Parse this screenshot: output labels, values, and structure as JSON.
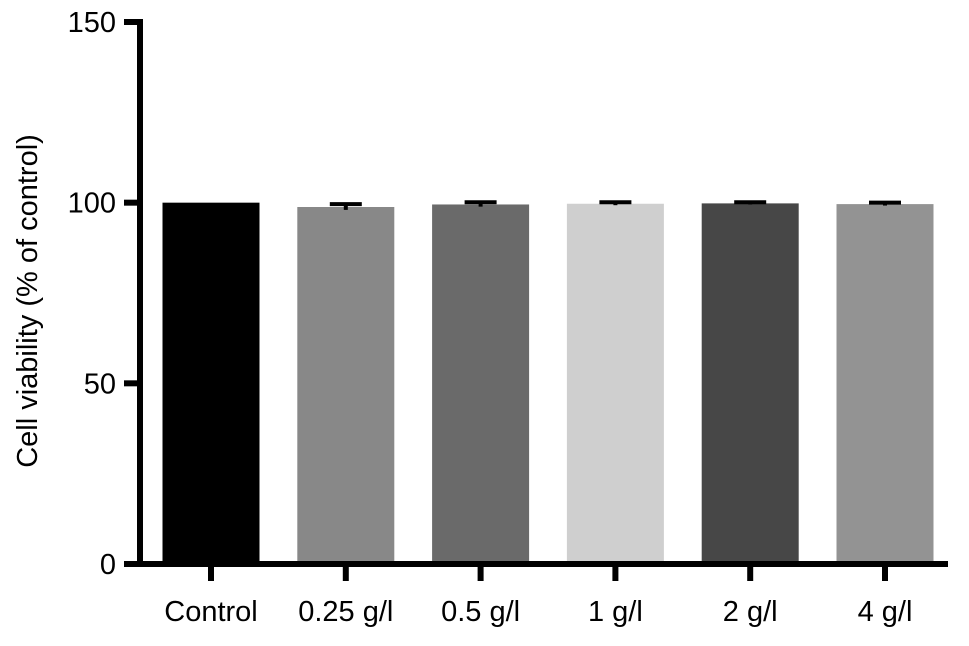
{
  "chart_data": {
    "type": "bar",
    "title": "",
    "xlabel": "",
    "ylabel": "Cell viability (% of control)",
    "ylim": [
      0,
      150
    ],
    "yticks": [
      0,
      50,
      100,
      150
    ],
    "categories": [
      "Control",
      "0.25 g/l",
      "0.5 g/l",
      "1 g/l",
      "2 g/l",
      "4 g/l"
    ],
    "values": [
      100.0,
      98.8,
      99.5,
      99.7,
      99.8,
      99.6
    ],
    "errors": [
      0.0,
      0.8,
      0.6,
      0.4,
      0.3,
      0.4
    ],
    "colors": [
      "#000000",
      "#888888",
      "#6a6a6a",
      "#cfcfcf",
      "#474747",
      "#939393"
    ],
    "grid": false,
    "legend": "none"
  }
}
